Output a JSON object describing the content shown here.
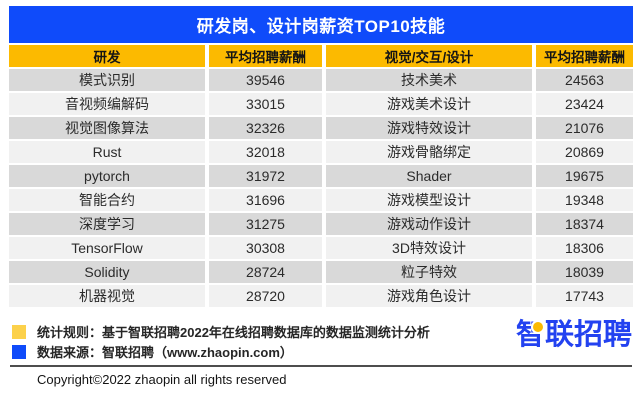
{
  "chart_data": {
    "type": "table",
    "title": "研发岗、设计岗薪资TOP10技能",
    "columns": [
      "研发",
      "平均招聘薪酬",
      "视觉/交互/设计",
      "平均招聘薪酬"
    ],
    "rows": [
      [
        "模式识别",
        "39546",
        "技术美术",
        "24563"
      ],
      [
        "音视频编解码",
        "33015",
        "游戏美术设计",
        "23424"
      ],
      [
        "视觉图像算法",
        "32326",
        "游戏特效设计",
        "21076"
      ],
      [
        "Rust",
        "32018",
        "游戏骨骼绑定",
        "20869"
      ],
      [
        "pytorch",
        "31972",
        "Shader",
        "19675"
      ],
      [
        "智能合约",
        "31696",
        "游戏模型设计",
        "19348"
      ],
      [
        "深度学习",
        "31275",
        "游戏动作设计",
        "18374"
      ],
      [
        "TensorFlow",
        "30308",
        "3D特效设计",
        "18306"
      ],
      [
        "Solidity",
        "28724",
        "粒子特效",
        "18039"
      ],
      [
        "机器视觉",
        "28720",
        "游戏角色设计",
        "17743"
      ]
    ],
    "layout_hints": {
      "row_striping": "alternating gray",
      "header_style": "gold background, bold"
    }
  },
  "footer": {
    "notes": [
      {
        "icon": "yellow-square",
        "text": "统计规则：基于智联招聘2022年在线招聘数据库的数据监测统计分析"
      },
      {
        "icon": "blue-square",
        "text": "数据来源：智联招聘（www.zhaopin.com）"
      }
    ],
    "copyright": "Copyright©2022 zhaopin all rights reserved",
    "logo_text": "智联招聘"
  },
  "colors": {
    "title_bar_blue": "#0f4bfa",
    "table_header_gold": "#fcba00",
    "row_stripe_dark": "#d9d9d9",
    "row_stripe_light": "#f1f1f1",
    "note_square_yellow": "#fcd14b",
    "note_square_blue": "#0f4bfa",
    "logo_blue": "#2342f0",
    "logo_dot_yellow": "#fcba00",
    "title_text": "#ffffff"
  }
}
